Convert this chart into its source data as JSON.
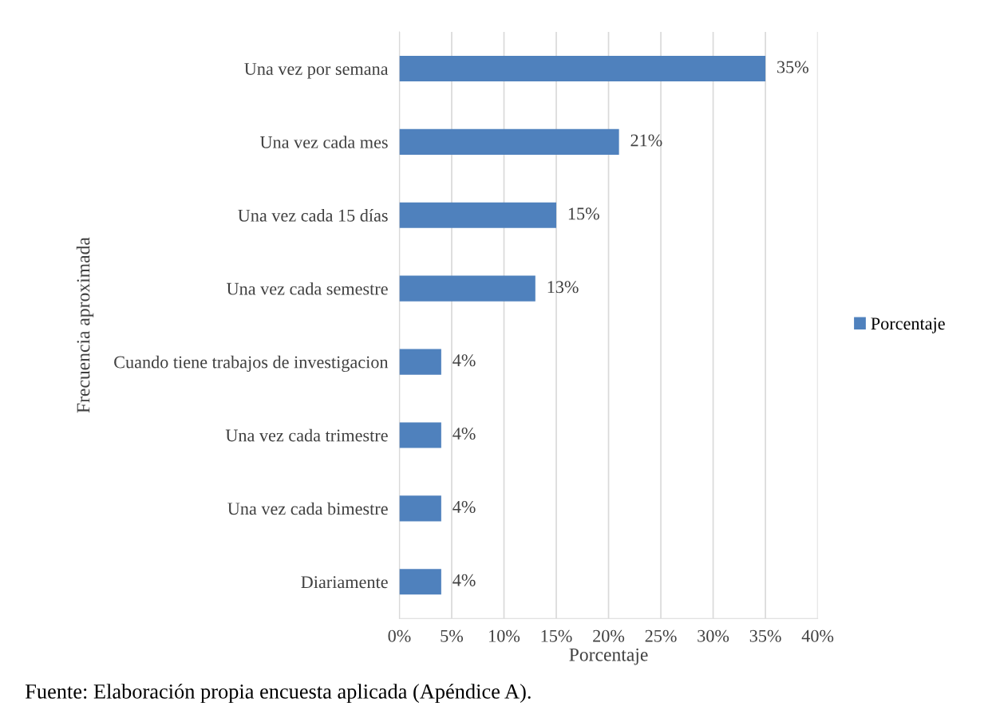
{
  "chart_data": {
    "type": "bar",
    "orientation": "horizontal",
    "categories": [
      "Una vez por semana",
      "Una vez cada mes",
      "Una vez cada 15 días",
      "Una vez cada semestre",
      "Cuando tiene trabajos de investigacion",
      "Una vez cada trimestre",
      "Una vez cada bimestre",
      "Diariamente"
    ],
    "series": [
      {
        "name": "Porcentaje",
        "color": "#4f81bd",
        "values": [
          35,
          21,
          15,
          13,
          4,
          4,
          4,
          4
        ],
        "value_labels": [
          "35%",
          "21%",
          "15%",
          "13%",
          "4%",
          "4%",
          "4%",
          "4%"
        ]
      }
    ],
    "xlabel": "Porcentaje",
    "ylabel": "Frecuencia aproximada",
    "xlim": [
      0,
      40
    ],
    "xticks": [
      {
        "value": 0,
        "label": "0%"
      },
      {
        "value": 5,
        "label": "5%"
      },
      {
        "value": 10,
        "label": "10%"
      },
      {
        "value": 15,
        "label": "15%"
      },
      {
        "value": 20,
        "label": "20%"
      },
      {
        "value": 25,
        "label": "25%"
      },
      {
        "value": 30,
        "label": "30%"
      },
      {
        "value": 35,
        "label": "35%"
      },
      {
        "value": 40,
        "label": "40%"
      }
    ],
    "grid": "x",
    "legend": "right",
    "annotations": [
      "Fuente: Elaboración propia encuesta aplicada (Apéndice A)."
    ]
  }
}
